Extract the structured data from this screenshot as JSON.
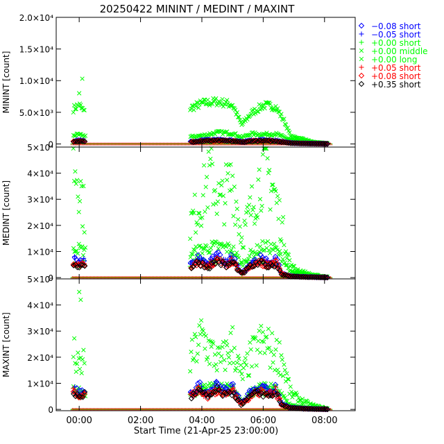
{
  "chart_data": {
    "type": "scatter",
    "title": "20250422 MININT / MEDINT / MAXINT",
    "xlabel": "Start Time (21-Apr-25 23:00:00)",
    "x_units": "hours after 21-Apr-25 23:00:00",
    "xlim": [
      0.25,
      10.0
    ],
    "x_ticks": [
      {
        "value": 1,
        "label": "00:00"
      },
      {
        "value": 3,
        "label": "02:00"
      },
      {
        "value": 5,
        "label": "04:00"
      },
      {
        "value": 7,
        "label": "06:00"
      },
      {
        "value": 9,
        "label": "08:00"
      }
    ],
    "legend": {
      "position": "top-right, outside plot",
      "entries": [
        {
          "marker": "diamond",
          "color": "#0000ff",
          "label": "−0.08 short"
        },
        {
          "marker": "plus",
          "color": "#0000ff",
          "label": "−0.05 short"
        },
        {
          "marker": "plus",
          "color": "#00ff00",
          "label": "+0.00 short"
        },
        {
          "marker": "cross",
          "color": "#00ff00",
          "label": "+0.00 middle"
        },
        {
          "marker": "cross",
          "color": "#00ff00",
          "label": "+0.00 long"
        },
        {
          "marker": "plus",
          "color": "#ff0000",
          "label": "+0.05 short"
        },
        {
          "marker": "diamond",
          "color": "#ff0000",
          "label": "+0.08 short"
        },
        {
          "marker": "diamond",
          "color": "#000000",
          "label": "+0.35 short"
        }
      ]
    },
    "panels": [
      {
        "name": "MININT",
        "ylabel": "MININT [count]",
        "ylim": [
          -500,
          20000
        ],
        "yticks": [
          {
            "value": 0,
            "label": "0"
          },
          {
            "value": 5000,
            "label": "5.0×10³"
          },
          {
            "value": 10000,
            "label": "1.0×10⁴"
          },
          {
            "value": 15000,
            "label": "1.5×10⁴"
          },
          {
            "value": 20000,
            "label": "2.0×10⁴"
          }
        ],
        "green_long_level": [
          [
            0.8,
            5500
          ],
          [
            1.0,
            6200
          ],
          [
            1.2,
            4800
          ],
          [
            4.6,
            5600
          ],
          [
            5.0,
            6400
          ],
          [
            5.5,
            6700
          ],
          [
            6.0,
            6200
          ],
          [
            6.3,
            3000
          ],
          [
            6.6,
            4800
          ],
          [
            7.0,
            6100
          ],
          [
            7.4,
            5900
          ],
          [
            7.7,
            3500
          ],
          [
            7.9,
            1200
          ],
          [
            8.3,
            800
          ],
          [
            8.6,
            300
          ],
          [
            8.9,
            200
          ],
          [
            9.1,
            100
          ]
        ],
        "green_middle_level": [
          [
            0.8,
            1400
          ],
          [
            1.0,
            1400
          ],
          [
            1.2,
            1300
          ],
          [
            4.6,
            1100
          ],
          [
            5.0,
            1300
          ],
          [
            5.5,
            1800
          ],
          [
            6.0,
            1700
          ],
          [
            6.3,
            1000
          ],
          [
            6.6,
            1600
          ],
          [
            7.0,
            1500
          ],
          [
            7.4,
            1600
          ],
          [
            7.7,
            1000
          ],
          [
            7.9,
            600
          ],
          [
            8.3,
            400
          ],
          [
            8.6,
            200
          ],
          [
            9.1,
            100
          ]
        ],
        "short_level": [
          [
            0.8,
            400
          ],
          [
            1.0,
            500
          ],
          [
            1.2,
            400
          ],
          [
            4.6,
            300
          ],
          [
            5.0,
            500
          ],
          [
            5.5,
            600
          ],
          [
            6.0,
            500
          ],
          [
            6.3,
            300
          ],
          [
            6.6,
            500
          ],
          [
            7.0,
            550
          ],
          [
            7.4,
            500
          ],
          [
            7.7,
            300
          ],
          [
            7.9,
            150
          ],
          [
            8.3,
            80
          ],
          [
            9.1,
            20
          ]
        ],
        "outliers": [
          [
            1.1,
            10300
          ],
          [
            1.0,
            8000
          ]
        ],
        "green_long_spread": 0.1,
        "green_middle_spread": 0.15,
        "short_spread": 0.2
      },
      {
        "name": "MEDINT",
        "ylabel": "MEDINT [count]",
        "ylim": [
          -500,
          50000
        ],
        "yticks": [
          {
            "value": 0,
            "label": "0"
          },
          {
            "value": 10000,
            "label": "1×10⁴"
          },
          {
            "value": 20000,
            "label": "2×10⁴"
          },
          {
            "value": 30000,
            "label": "3×10⁴"
          },
          {
            "value": 40000,
            "label": "4×10⁴"
          },
          {
            "value": 50000,
            "label": "5×10⁴"
          }
        ],
        "green_long_level": [
          [
            0.8,
            45000
          ],
          [
            1.0,
            38000
          ],
          [
            1.2,
            22000
          ],
          [
            4.6,
            20000
          ],
          [
            5.0,
            30000
          ],
          [
            5.3,
            40000
          ],
          [
            5.6,
            28000
          ],
          [
            6.0,
            38000
          ],
          [
            6.3,
            15000
          ],
          [
            6.6,
            26000
          ],
          [
            7.0,
            42000
          ],
          [
            7.3,
            36000
          ],
          [
            7.6,
            20000
          ],
          [
            7.9,
            4000
          ],
          [
            8.3,
            2000
          ],
          [
            8.6,
            1000
          ],
          [
            9.1,
            300
          ]
        ],
        "green_middle_level": [
          [
            0.8,
            12000
          ],
          [
            1.0,
            11000
          ],
          [
            1.2,
            10000
          ],
          [
            4.6,
            9000
          ],
          [
            5.0,
            11000
          ],
          [
            5.5,
            12000
          ],
          [
            6.0,
            11000
          ],
          [
            6.3,
            5000
          ],
          [
            6.6,
            9000
          ],
          [
            7.0,
            12000
          ],
          [
            7.4,
            11000
          ],
          [
            7.7,
            6000
          ],
          [
            7.9,
            2000
          ],
          [
            8.3,
            1500
          ],
          [
            8.6,
            800
          ],
          [
            9.1,
            200
          ]
        ],
        "short_level": [
          [
            0.8,
            6500
          ],
          [
            1.0,
            5000
          ],
          [
            1.2,
            6000
          ],
          [
            4.6,
            4000
          ],
          [
            4.9,
            7000
          ],
          [
            5.2,
            4500
          ],
          [
            5.5,
            7500
          ],
          [
            5.8,
            5000
          ],
          [
            6.0,
            7000
          ],
          [
            6.3,
            1500
          ],
          [
            6.6,
            5000
          ],
          [
            6.9,
            6500
          ],
          [
            7.2,
            5000
          ],
          [
            7.4,
            6500
          ],
          [
            7.6,
            1500
          ],
          [
            7.9,
            500
          ],
          [
            8.3,
            300
          ],
          [
            9.1,
            50
          ]
        ],
        "outliers": [],
        "green_long_spread": 0.35,
        "green_middle_spread": 0.2,
        "short_spread": 0.22
      },
      {
        "name": "MAXINT",
        "ylabel": "MAXINT [count]",
        "ylim": [
          -500,
          50000
        ],
        "yticks": [
          {
            "value": 0,
            "label": "0"
          },
          {
            "value": 10000,
            "label": "1×10⁴"
          },
          {
            "value": 20000,
            "label": "2×10⁴"
          },
          {
            "value": 30000,
            "label": "3×10⁴"
          },
          {
            "value": 40000,
            "label": "4×10⁴"
          },
          {
            "value": 50000,
            "label": "5×10⁴"
          }
        ],
        "green_long_level": [
          [
            0.8,
            22000
          ],
          [
            1.0,
            15000
          ],
          [
            1.2,
            20000
          ],
          [
            4.6,
            18000
          ],
          [
            5.0,
            28000
          ],
          [
            5.3,
            22000
          ],
          [
            5.6,
            18000
          ],
          [
            6.0,
            25000
          ],
          [
            6.3,
            12000
          ],
          [
            6.6,
            20000
          ],
          [
            7.0,
            26000
          ],
          [
            7.3,
            22000
          ],
          [
            7.6,
            20000
          ],
          [
            7.9,
            6000
          ],
          [
            8.3,
            3000
          ],
          [
            8.6,
            1500
          ],
          [
            9.1,
            300
          ]
        ],
        "green_middle_level": [
          [
            0.8,
            8000
          ],
          [
            1.0,
            7000
          ],
          [
            1.2,
            6000
          ],
          [
            4.6,
            5000
          ],
          [
            5.0,
            8000
          ],
          [
            5.5,
            9000
          ],
          [
            6.0,
            8000
          ],
          [
            6.3,
            3000
          ],
          [
            6.6,
            7000
          ],
          [
            7.0,
            9000
          ],
          [
            7.4,
            8000
          ],
          [
            7.7,
            4000
          ],
          [
            7.9,
            1500
          ],
          [
            8.3,
            800
          ],
          [
            8.6,
            500
          ],
          [
            9.1,
            100
          ]
        ],
        "short_level": [
          [
            0.8,
            7500
          ],
          [
            1.0,
            5500
          ],
          [
            1.2,
            7000
          ],
          [
            4.6,
            5000
          ],
          [
            4.9,
            8000
          ],
          [
            5.2,
            5500
          ],
          [
            5.5,
            8500
          ],
          [
            5.8,
            6000
          ],
          [
            6.0,
            8000
          ],
          [
            6.3,
            2000
          ],
          [
            6.6,
            6000
          ],
          [
            6.9,
            7500
          ],
          [
            7.2,
            6000
          ],
          [
            7.4,
            8000
          ],
          [
            7.6,
            2000
          ],
          [
            7.9,
            600
          ],
          [
            8.3,
            300
          ],
          [
            9.1,
            50
          ]
        ],
        "outliers": [
          [
            1.0,
            45000
          ],
          [
            1.05,
            42000
          ]
        ],
        "green_long_spread": 0.35,
        "green_middle_spread": 0.2,
        "short_spread": 0.22
      }
    ]
  }
}
